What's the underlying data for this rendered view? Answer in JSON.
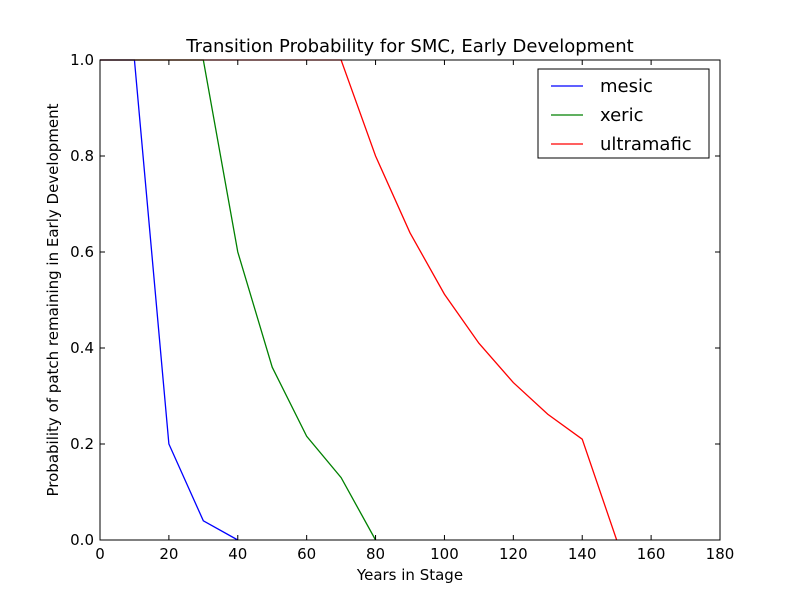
{
  "chart_data": {
    "type": "line",
    "title": "Transition Probability for SMC, Early Development",
    "xlabel": "Years in Stage",
    "ylabel": "Probability of patch remaining in Early Development",
    "xlim": [
      0,
      180
    ],
    "ylim": [
      0.0,
      1.0
    ],
    "xticks": [
      0,
      20,
      40,
      60,
      80,
      100,
      120,
      140,
      160,
      180
    ],
    "yticks": [
      0.0,
      0.2,
      0.4,
      0.6,
      0.8,
      1.0
    ],
    "xtick_labels": [
      "0",
      "20",
      "40",
      "60",
      "80",
      "100",
      "120",
      "140",
      "160",
      "180"
    ],
    "ytick_labels": [
      "0.0",
      "0.2",
      "0.4",
      "0.6",
      "0.8",
      "1.0"
    ],
    "grid": false,
    "legend_position": "top-right",
    "series": [
      {
        "name": "mesic",
        "color": "#0000ff",
        "x": [
          0,
          10,
          20,
          30,
          40
        ],
        "y": [
          1.0,
          1.0,
          0.2,
          0.04,
          0.0
        ]
      },
      {
        "name": "xeric",
        "color": "#008000",
        "x": [
          0,
          30,
          40,
          50,
          60,
          70,
          80
        ],
        "y": [
          1.0,
          1.0,
          0.6,
          0.36,
          0.216,
          0.13,
          0.0
        ]
      },
      {
        "name": "ultramafic",
        "color": "#ff0000",
        "x": [
          0,
          70,
          80,
          90,
          100,
          110,
          120,
          130,
          140,
          150
        ],
        "y": [
          1.0,
          1.0,
          0.8,
          0.64,
          0.512,
          0.41,
          0.328,
          0.262,
          0.21,
          0.0
        ]
      }
    ]
  }
}
